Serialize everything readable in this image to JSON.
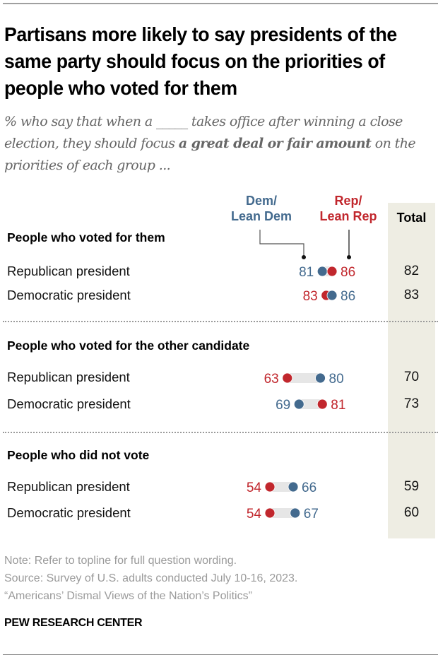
{
  "title": "Partisans more likely to say presidents of the same party should focus on the priorities of people who voted for them",
  "subtitle": {
    "part1": "% who say that when a _____ takes office after winning a close election, they should focus ",
    "bold": "a great deal or fair amount",
    "part2": " on the priorities of each group ..."
  },
  "legend": {
    "dem": "Dem/\nLean Dem",
    "rep": "Rep/\nLean Rep",
    "total": "Total"
  },
  "colors": {
    "dem": "#436a8e",
    "rep": "#c1272d",
    "bar": "#e6e6e6",
    "total_bg": "#eeede3"
  },
  "chart_data": {
    "type": "dot",
    "title": "Partisans more likely to say presidents of the same party should focus on the priorities of people who voted for them",
    "series": [
      {
        "name": "Dem/Lean Dem",
        "color": "#436a8e"
      },
      {
        "name": "Rep/Lean Rep",
        "color": "#c1272d"
      },
      {
        "name": "Total"
      }
    ],
    "groups": [
      {
        "label": "People who voted for them",
        "rows": [
          {
            "label": "Republican president",
            "dem": 81,
            "rep": 86,
            "total": 82
          },
          {
            "label": "Democratic president",
            "dem": 86,
            "rep": 83,
            "total": 83
          }
        ]
      },
      {
        "label": "People who voted for the other candidate",
        "rows": [
          {
            "label": "Republican president",
            "dem": 80,
            "rep": 63,
            "total": 70
          },
          {
            "label": "Democratic president",
            "dem": 69,
            "rep": 81,
            "total": 73
          }
        ]
      },
      {
        "label": "People who did not vote",
        "rows": [
          {
            "label": "Republican president",
            "dem": 66,
            "rep": 54,
            "total": 59
          },
          {
            "label": "Democratic president",
            "dem": 67,
            "rep": 54,
            "total": 60
          }
        ]
      }
    ],
    "unit": "%"
  },
  "notes": {
    "note": "Note: Refer to topline for full question wording.",
    "source": "Source: Survey of U.S. adults conducted July 10-16, 2023.",
    "report": "“Americans’ Dismal Views of the Nation’s Politics”"
  },
  "brand": "PEW RESEARCH CENTER"
}
